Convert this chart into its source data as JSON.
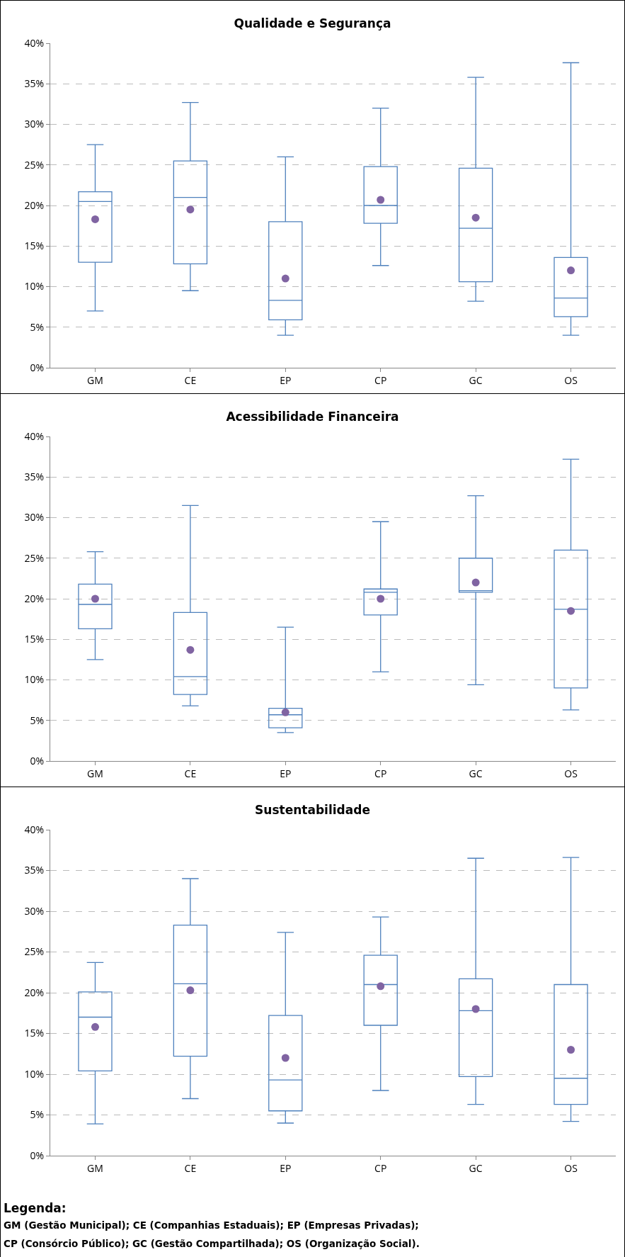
{
  "chart_data": [
    {
      "type": "box",
      "title": "Qualidade e Segurança",
      "categories": [
        "GM",
        "CE",
        "EP",
        "CP",
        "GC",
        "OS"
      ],
      "ylim": [
        0,
        40
      ],
      "yticks": [
        {
          "value": 0,
          "label": "0%"
        },
        {
          "value": 5,
          "label": "5%"
        },
        {
          "value": 10,
          "label": "10%"
        },
        {
          "value": 15,
          "label": "15%"
        },
        {
          "value": 20,
          "label": "20%"
        },
        {
          "value": 25,
          "label": "25%"
        },
        {
          "value": 30,
          "label": "30%"
        },
        {
          "value": 35,
          "label": "35%"
        },
        {
          "value": 40,
          "label": "40%"
        }
      ],
      "grid": "y",
      "series": [
        {
          "color": "#4f81bd",
          "boxes": [
            {
              "low": 7,
              "q1": 13,
              "median": 20.5,
              "q3": 21.7,
              "high": 27.5
            },
            {
              "low": 9.5,
              "q1": 12.8,
              "median": 21,
              "q3": 25.5,
              "high": 32.7
            },
            {
              "low": 4,
              "q1": 5.9,
              "median": 8.3,
              "q3": 18,
              "high": 26
            },
            {
              "low": 12.6,
              "q1": 17.8,
              "median": 20,
              "q3": 24.8,
              "high": 32
            },
            {
              "low": 8.2,
              "q1": 10.6,
              "median": 17.2,
              "q3": 24.6,
              "high": 35.8
            },
            {
              "low": 4,
              "q1": 6.3,
              "median": 8.6,
              "q3": 13.6,
              "high": 37.6
            }
          ]
        },
        {
          "type": "scatter",
          "color": "#8064a2",
          "marker": "circle",
          "x": [
            "GM",
            "CE",
            "EP",
            "CP",
            "GC",
            "OS"
          ],
          "values": [
            18.3,
            19.5,
            11,
            20.7,
            18.5,
            12
          ]
        }
      ]
    },
    {
      "type": "box",
      "title": "Acessibilidade Financeira",
      "categories": [
        "GM",
        "CE",
        "EP",
        "CP",
        "GC",
        "OS"
      ],
      "ylim": [
        0,
        40
      ],
      "yticks": [
        {
          "value": 0,
          "label": "0%"
        },
        {
          "value": 5,
          "label": "5%"
        },
        {
          "value": 10,
          "label": "10%"
        },
        {
          "value": 15,
          "label": "15%"
        },
        {
          "value": 20,
          "label": "20%"
        },
        {
          "value": 25,
          "label": "25%"
        },
        {
          "value": 30,
          "label": "30%"
        },
        {
          "value": 35,
          "label": "35%"
        },
        {
          "value": 40,
          "label": "40%"
        }
      ],
      "grid": "y",
      "series": [
        {
          "color": "#4f81bd",
          "boxes": [
            {
              "low": 12.5,
              "q1": 16.3,
              "median": 19.3,
              "q3": 21.8,
              "high": 25.8
            },
            {
              "low": 6.8,
              "q1": 8.2,
              "median": 10.4,
              "q3": 18.3,
              "high": 31.5
            },
            {
              "low": 3.5,
              "q1": 4.1,
              "median": 5.7,
              "q3": 6.5,
              "high": 16.5
            },
            {
              "low": 11,
              "q1": 18,
              "median": 20.8,
              "q3": 21.2,
              "high": 29.5
            },
            {
              "low": 9.4,
              "q1": 20.8,
              "median": 21,
              "q3": 25,
              "high": 32.7
            },
            {
              "low": 6.3,
              "q1": 9,
              "median": 18.7,
              "q3": 26,
              "high": 37.2
            }
          ]
        },
        {
          "type": "scatter",
          "color": "#8064a2",
          "marker": "circle",
          "x": [
            "GM",
            "CE",
            "EP",
            "CP",
            "GC",
            "OS"
          ],
          "values": [
            20,
            13.7,
            6,
            20,
            22,
            18.5
          ]
        }
      ]
    },
    {
      "type": "box",
      "title": "Sustentabilidade",
      "categories": [
        "GM",
        "CE",
        "EP",
        "CP",
        "GC",
        "OS"
      ],
      "ylim": [
        0,
        40
      ],
      "yticks": [
        {
          "value": 0,
          "label": "0%"
        },
        {
          "value": 5,
          "label": "5%"
        },
        {
          "value": 10,
          "label": "10%"
        },
        {
          "value": 15,
          "label": "15%"
        },
        {
          "value": 20,
          "label": "20%"
        },
        {
          "value": 25,
          "label": "25%"
        },
        {
          "value": 30,
          "label": "30%"
        },
        {
          "value": 35,
          "label": "35%"
        },
        {
          "value": 40,
          "label": "40%"
        }
      ],
      "grid": "y",
      "annotations": [
        "Legenda:",
        "GM (Gestão Municipal); CE (Companhias Estaduais); EP (Empresas Privadas);",
        "CP (Consórcio Público); GC (Gestão Compartilhada); OS (Organização Social)."
      ],
      "series": [
        {
          "color": "#4f81bd",
          "boxes": [
            {
              "low": 3.9,
              "q1": 10.4,
              "median": 17,
              "q3": 20.1,
              "high": 23.7
            },
            {
              "low": 7,
              "q1": 12.2,
              "median": 21.1,
              "q3": 28.3,
              "high": 34
            },
            {
              "low": 4,
              "q1": 5.5,
              "median": 9.3,
              "q3": 17.2,
              "high": 27.4
            },
            {
              "low": 8,
              "q1": 16,
              "median": 21,
              "q3": 24.6,
              "high": 29.3
            },
            {
              "low": 6.3,
              "q1": 9.7,
              "median": 17.8,
              "q3": 21.7,
              "high": 36.5
            },
            {
              "low": 4.2,
              "q1": 6.3,
              "median": 9.5,
              "q3": 21,
              "high": 36.6
            }
          ]
        },
        {
          "type": "scatter",
          "color": "#8064a2",
          "marker": "circle",
          "x": [
            "GM",
            "CE",
            "EP",
            "CP",
            "GC",
            "OS"
          ],
          "values": [
            15.8,
            20.3,
            12,
            20.8,
            18,
            13
          ]
        }
      ]
    }
  ]
}
